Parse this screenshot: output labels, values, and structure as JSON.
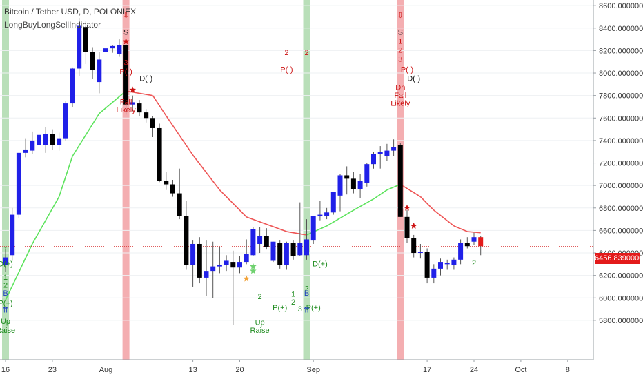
{
  "header": {
    "title": "Bitcoin / Tether USD, D, POLONIEX",
    "indicator": "LongBuyLongSellIndicator"
  },
  "last_price_label": "6456.83900000",
  "colors": {
    "up": "#2020e8",
    "down": "#000000",
    "ma_up": "#5ce35c",
    "ma_down": "#ee5555",
    "buy_band": "#b9dfb9",
    "sell_band": "#f4aeb1",
    "price_line": "#d62a2a",
    "buy_text": "#1e8c1e",
    "sell_text": "#cc1111"
  },
  "chart_data": {
    "type": "candlestick",
    "x_axis": {
      "ticks": [
        "16",
        "23",
        "Aug",
        "13",
        "20",
        "Sep",
        "17",
        "24",
        "Oct",
        "8"
      ]
    },
    "y_axis": {
      "ylim": [
        5450,
        8650
      ],
      "ticks": [
        "5800.00000000",
        "6000.00000000",
        "6200.00000000",
        "6400.00000000",
        "6600.00000000",
        "6800.00000000",
        "7000.00000000",
        "7200.00000000",
        "7400.00000000",
        "7600.00000000",
        "7800.00000000",
        "8000.00000000",
        "8200.00000000",
        "8400.00000000",
        "8600.00000000"
      ]
    },
    "last_price": 6456.839,
    "candles": [
      {
        "o": 6290,
        "h": 6430,
        "l": 6230,
        "c": 6360
      },
      {
        "o": 6380,
        "h": 6800,
        "l": 6330,
        "c": 6740
      },
      {
        "o": 6740,
        "h": 7290,
        "l": 6710,
        "c": 7290
      },
      {
        "o": 7290,
        "h": 7420,
        "l": 7250,
        "c": 7320
      },
      {
        "o": 7310,
        "h": 7480,
        "l": 7280,
        "c": 7400
      },
      {
        "o": 7360,
        "h": 7500,
        "l": 7280,
        "c": 7450
      },
      {
        "o": 7360,
        "h": 7520,
        "l": 7290,
        "c": 7460
      },
      {
        "o": 7460,
        "h": 7500,
        "l": 7320,
        "c": 7360
      },
      {
        "o": 7360,
        "h": 7470,
        "l": 7310,
        "c": 7420
      },
      {
        "o": 7420,
        "h": 7750,
        "l": 7400,
        "c": 7730
      },
      {
        "o": 7730,
        "h": 8050,
        "l": 7700,
        "c": 8040
      },
      {
        "o": 8040,
        "h": 8490,
        "l": 7970,
        "c": 8420
      },
      {
        "o": 8410,
        "h": 8460,
        "l": 8080,
        "c": 8190
      },
      {
        "o": 8190,
        "h": 8230,
        "l": 7950,
        "c": 8030
      },
      {
        "o": 7920,
        "h": 8190,
        "l": 7820,
        "c": 8120
      },
      {
        "o": 8190,
        "h": 8250,
        "l": 8150,
        "c": 8220
      },
      {
        "o": 8220,
        "h": 8250,
        "l": 8180,
        "c": 8240
      },
      {
        "o": 8170,
        "h": 8300,
        "l": 8150,
        "c": 8250
      },
      {
        "o": 8250,
        "h": 8260,
        "l": 7630,
        "c": 7720
      },
      {
        "o": 7720,
        "h": 7800,
        "l": 7660,
        "c": 7740
      },
      {
        "o": 7730,
        "h": 7760,
        "l": 7620,
        "c": 7650
      },
      {
        "o": 7650,
        "h": 7680,
        "l": 7560,
        "c": 7600
      },
      {
        "o": 7600,
        "h": 7620,
        "l": 7430,
        "c": 7510
      },
      {
        "o": 7510,
        "h": 7550,
        "l": 7030,
        "c": 7040
      },
      {
        "o": 7040,
        "h": 7120,
        "l": 6960,
        "c": 7010
      },
      {
        "o": 7010,
        "h": 7050,
        "l": 6900,
        "c": 6930
      },
      {
        "o": 6930,
        "h": 7150,
        "l": 6700,
        "c": 6730
      },
      {
        "o": 6730,
        "h": 6860,
        "l": 6250,
        "c": 6290
      },
      {
        "o": 6290,
        "h": 6510,
        "l": 6100,
        "c": 6480
      },
      {
        "o": 6480,
        "h": 6540,
        "l": 6130,
        "c": 6180
      },
      {
        "o": 6180,
        "h": 6510,
        "l": 6020,
        "c": 6240
      },
      {
        "o": 6240,
        "h": 6500,
        "l": 6000,
        "c": 6280
      },
      {
        "o": 6280,
        "h": 6450,
        "l": 6220,
        "c": 6290
      },
      {
        "o": 6290,
        "h": 6380,
        "l": 6240,
        "c": 6330
      },
      {
        "o": 6320,
        "h": 6420,
        "l": 5760,
        "c": 6270
      },
      {
        "o": 6270,
        "h": 6370,
        "l": 6220,
        "c": 6320
      },
      {
        "o": 6320,
        "h": 6520,
        "l": 6300,
        "c": 6390
      },
      {
        "o": 6380,
        "h": 6630,
        "l": 6370,
        "c": 6610
      },
      {
        "o": 6480,
        "h": 6630,
        "l": 6400,
        "c": 6550
      },
      {
        "o": 6550,
        "h": 6620,
        "l": 6430,
        "c": 6450
      },
      {
        "o": 6330,
        "h": 6500,
        "l": 6320,
        "c": 6500
      },
      {
        "o": 6490,
        "h": 6510,
        "l": 6260,
        "c": 6290
      },
      {
        "o": 6290,
        "h": 6500,
        "l": 6250,
        "c": 6490
      },
      {
        "o": 6490,
        "h": 6510,
        "l": 6340,
        "c": 6370
      },
      {
        "o": 6380,
        "h": 6850,
        "l": 6370,
        "c": 6490
      },
      {
        "o": 6380,
        "h": 6700,
        "l": 6340,
        "c": 6520
      },
      {
        "o": 6510,
        "h": 6700,
        "l": 6480,
        "c": 6730
      },
      {
        "o": 6730,
        "h": 6860,
        "l": 6690,
        "c": 6740
      },
      {
        "o": 6730,
        "h": 6800,
        "l": 6700,
        "c": 6760
      },
      {
        "o": 6760,
        "h": 6930,
        "l": 6740,
        "c": 6940
      },
      {
        "o": 6910,
        "h": 7100,
        "l": 6770,
        "c": 7090
      },
      {
        "o": 7090,
        "h": 7170,
        "l": 6920,
        "c": 7060
      },
      {
        "o": 7060,
        "h": 7120,
        "l": 6930,
        "c": 6970
      },
      {
        "o": 6970,
        "h": 7100,
        "l": 6890,
        "c": 7040
      },
      {
        "o": 7020,
        "h": 7200,
        "l": 6990,
        "c": 7190
      },
      {
        "o": 7190,
        "h": 7300,
        "l": 7150,
        "c": 7280
      },
      {
        "o": 7280,
        "h": 7350,
        "l": 7150,
        "c": 7300
      },
      {
        "o": 7260,
        "h": 7370,
        "l": 7220,
        "c": 7310
      },
      {
        "o": 7310,
        "h": 7410,
        "l": 7260,
        "c": 7340
      },
      {
        "o": 7360,
        "h": 7380,
        "l": 6720,
        "c": 6720
      },
      {
        "o": 6720,
        "h": 6780,
        "l": 6490,
        "c": 6530
      },
      {
        "o": 6530,
        "h": 6560,
        "l": 6360,
        "c": 6400
      },
      {
        "o": 6400,
        "h": 6480,
        "l": 6350,
        "c": 6410
      },
      {
        "o": 6410,
        "h": 6440,
        "l": 6130,
        "c": 6180
      },
      {
        "o": 6180,
        "h": 6300,
        "l": 6130,
        "c": 6260
      },
      {
        "o": 6260,
        "h": 6350,
        "l": 6200,
        "c": 6320
      },
      {
        "o": 6300,
        "h": 6340,
        "l": 6250,
        "c": 6310
      },
      {
        "o": 6290,
        "h": 6360,
        "l": 6250,
        "c": 6340
      },
      {
        "o": 6340,
        "h": 6520,
        "l": 6300,
        "c": 6490
      },
      {
        "o": 6490,
        "h": 6540,
        "l": 6440,
        "c": 6460
      },
      {
        "o": 6500,
        "h": 6580,
        "l": 6470,
        "c": 6540
      },
      {
        "o": 6540,
        "h": 6550,
        "l": 6380,
        "c": 6460
      }
    ],
    "moving_average": [
      {
        "i": 0,
        "v": 5980
      },
      {
        "i": 4,
        "v": 6480
      },
      {
        "i": 8,
        "v": 6900
      },
      {
        "i": 10,
        "v": 7260
      },
      {
        "i": 14,
        "v": 7640
      },
      {
        "i": 18,
        "v": 7840
      },
      {
        "i": 22,
        "v": 7800
      },
      {
        "i": 24,
        "v": 7620
      },
      {
        "i": 28,
        "v": 7270
      },
      {
        "i": 32,
        "v": 6960
      },
      {
        "i": 36,
        "v": 6720
      },
      {
        "i": 42,
        "v": 6590
      },
      {
        "i": 45,
        "v": 6560
      },
      {
        "i": 48,
        "v": 6640
      },
      {
        "i": 52,
        "v": 6780
      },
      {
        "i": 55,
        "v": 6880
      },
      {
        "i": 57,
        "v": 6960
      },
      {
        "i": 59,
        "v": 7010
      },
      {
        "i": 62,
        "v": 6900
      },
      {
        "i": 64,
        "v": 6780
      },
      {
        "i": 67,
        "v": 6640
      },
      {
        "i": 69,
        "v": 6590
      },
      {
        "i": 71,
        "v": 6580
      }
    ],
    "sell_bands": [
      18,
      59
    ],
    "buy_bands": [
      0,
      45
    ],
    "annotations": [
      {
        "i": 0,
        "y": 6420,
        "text": "↑",
        "side": "buy"
      },
      {
        "i": 0,
        "y": 6280,
        "text": "D(+)",
        "side": "buy"
      },
      {
        "i": 0,
        "y": 6160,
        "text": "1",
        "side": "buy"
      },
      {
        "i": 0,
        "y": 6090,
        "text": "2",
        "side": "buy"
      },
      {
        "i": 0,
        "y": 6020,
        "text": "B",
        "side": "b"
      },
      {
        "i": 0,
        "y": 5930,
        "text": "P(+)",
        "side": "buy"
      },
      {
        "i": 0,
        "y": 5870,
        "text": "⇈",
        "side": "b"
      },
      {
        "i": 0,
        "y": 5770,
        "text": "Up",
        "side": "buy"
      },
      {
        "i": 0,
        "y": 5690,
        "text": "Raise",
        "side": "buy"
      },
      {
        "i": 18,
        "y": 8490,
        "text": "⇩",
        "side": "sell"
      },
      {
        "i": 18,
        "y": 8340,
        "text": "S",
        "side": "s"
      },
      {
        "i": 18,
        "y": 8070,
        "text": "3",
        "side": "sell"
      },
      {
        "i": 18,
        "y": 7990,
        "text": "P(-)",
        "side": "sell"
      },
      {
        "i": 18,
        "y": 7720,
        "text": "Fall",
        "side": "sell"
      },
      {
        "i": 18,
        "y": 7650,
        "text": "Likely",
        "side": "sell"
      },
      {
        "i": 21,
        "y": 7930,
        "text": "D(-)",
        "side": "dark"
      },
      {
        "i": 42,
        "y": 8160,
        "text": "2",
        "side": "sell"
      },
      {
        "i": 45,
        "y": 8160,
        "text": "2",
        "side": "sell"
      },
      {
        "i": 42,
        "y": 8010,
        "text": "P(-)",
        "side": "sell"
      },
      {
        "i": 38,
        "y": 5990,
        "text": "2",
        "side": "buy"
      },
      {
        "i": 41,
        "y": 5890,
        "text": "P(+)",
        "side": "buy"
      },
      {
        "i": 43,
        "y": 6010,
        "text": "1",
        "side": "buy"
      },
      {
        "i": 43,
        "y": 5940,
        "text": "2",
        "side": "buy"
      },
      {
        "i": 44,
        "y": 5880,
        "text": "3",
        "side": "buy"
      },
      {
        "i": 46,
        "y": 5890,
        "text": "P(+)",
        "side": "buy"
      },
      {
        "i": 45,
        "y": 6060,
        "text": "2",
        "side": "buy"
      },
      {
        "i": 47,
        "y": 6280,
        "text": "D(+)",
        "side": "buy"
      },
      {
        "i": 45,
        "y": 6020,
        "text": "B",
        "side": "b"
      },
      {
        "i": 45,
        "y": 5870,
        "text": "⇈",
        "side": "b"
      },
      {
        "i": 38,
        "y": 5760,
        "text": "Up",
        "side": "buy"
      },
      {
        "i": 38,
        "y": 5690,
        "text": "Raise",
        "side": "buy"
      },
      {
        "i": 59,
        "y": 8490,
        "text": "⇩",
        "side": "sell"
      },
      {
        "i": 59,
        "y": 8340,
        "text": "S",
        "side": "s"
      },
      {
        "i": 59,
        "y": 8260,
        "text": "1",
        "side": "sell"
      },
      {
        "i": 59,
        "y": 8180,
        "text": "2",
        "side": "sell"
      },
      {
        "i": 59,
        "y": 8100,
        "text": "3",
        "side": "sell"
      },
      {
        "i": 60,
        "y": 8010,
        "text": "P(-)",
        "side": "sell"
      },
      {
        "i": 61,
        "y": 7930,
        "text": "D(-)",
        "side": "dark"
      },
      {
        "i": 59,
        "y": 7850,
        "text": "Dn",
        "side": "sell"
      },
      {
        "i": 59,
        "y": 7780,
        "text": "Fall",
        "side": "sell"
      },
      {
        "i": 59,
        "y": 7710,
        "text": "Likely",
        "side": "sell"
      },
      {
        "i": 70,
        "y": 6290,
        "text": "2",
        "side": "buy"
      }
    ],
    "markers": [
      {
        "i": 18,
        "y": 8280,
        "type": "star",
        "color": "#cc1111"
      },
      {
        "i": 19,
        "y": 7850,
        "type": "star",
        "color": "#cc1111"
      },
      {
        "i": 36,
        "y": 6170,
        "type": "star",
        "color": "#f2a33a"
      },
      {
        "i": 37,
        "y": 6240,
        "type": "star",
        "color": "#6fd16f"
      },
      {
        "i": 37,
        "y": 6280,
        "type": "star",
        "color": "#6fd16f"
      },
      {
        "i": 60,
        "y": 6800,
        "type": "star",
        "color": "#cc1111"
      },
      {
        "i": 61,
        "y": 6640,
        "type": "star",
        "color": "#cc1111"
      }
    ]
  }
}
